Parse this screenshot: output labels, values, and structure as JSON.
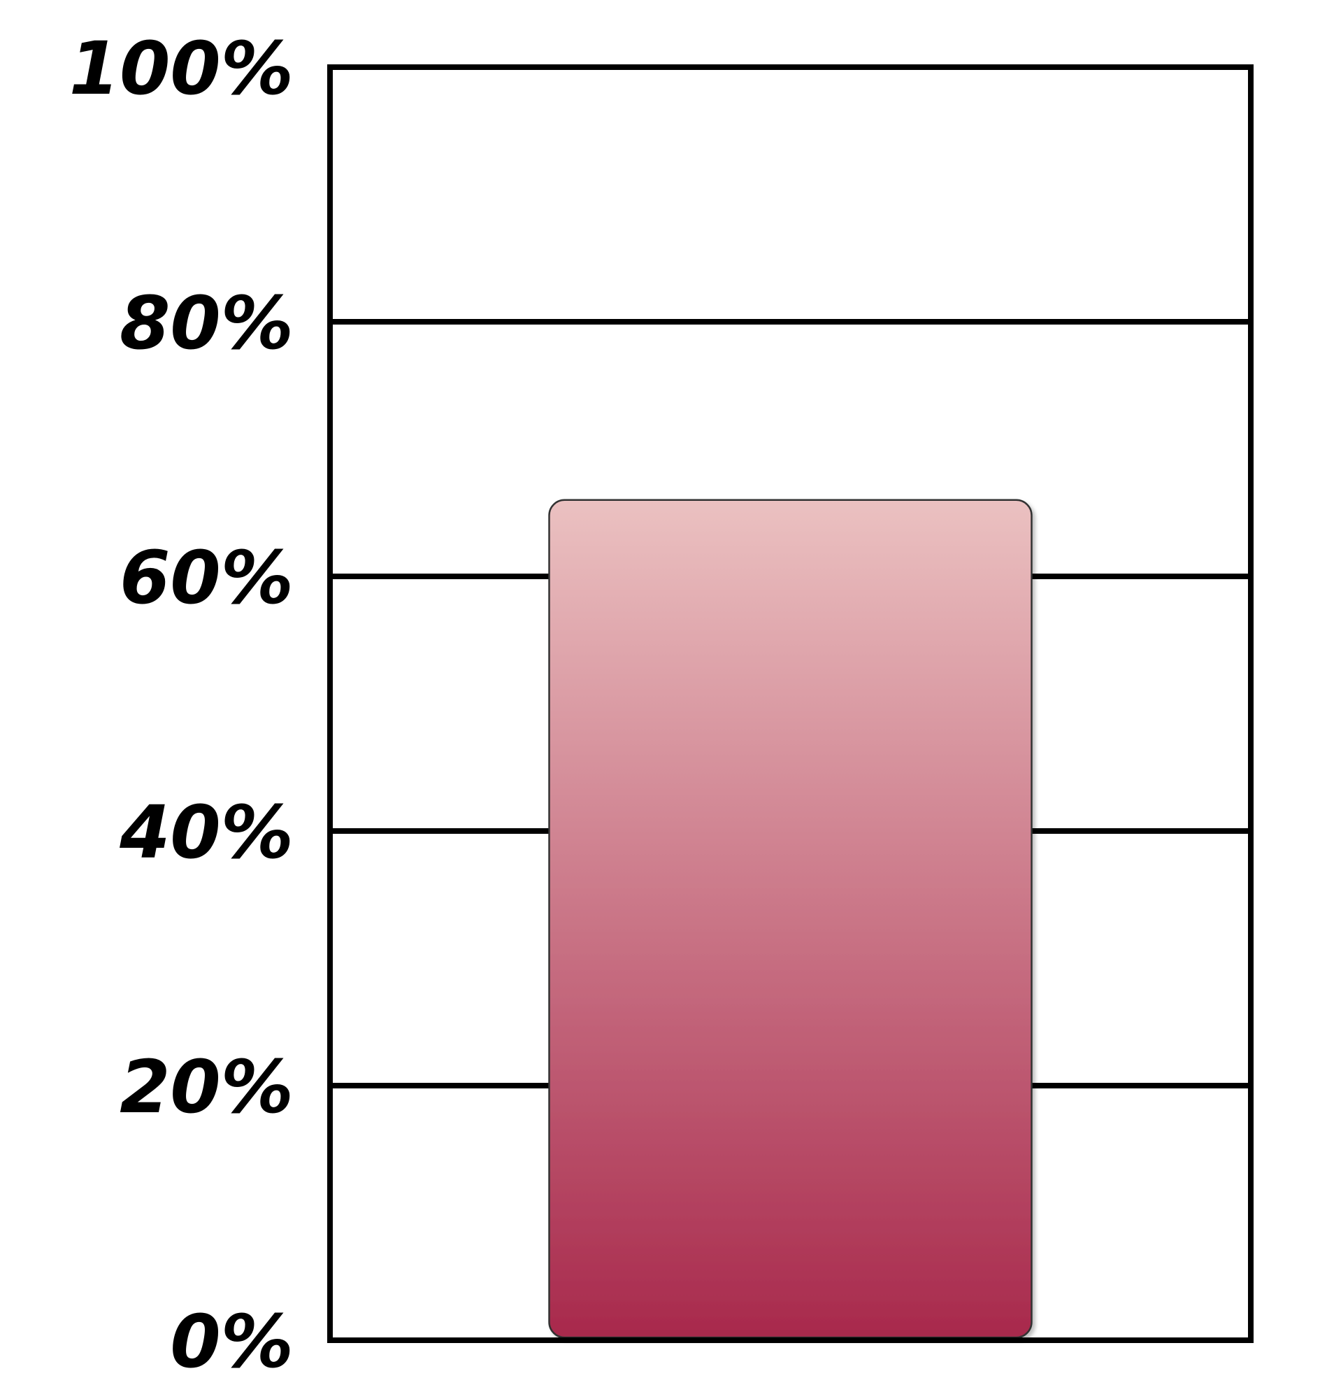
{
  "chart_data": {
    "type": "bar",
    "categories": [
      ""
    ],
    "values": [
      66
    ],
    "title": "",
    "xlabel": "",
    "ylabel": "",
    "ylim": [
      0,
      100
    ],
    "yticks": [
      0,
      20,
      40,
      60,
      80,
      100
    ],
    "ytick_labels": [
      "0%",
      "20%",
      "40%",
      "60%",
      "80%",
      "100%"
    ],
    "grid": true,
    "legend": "none",
    "colors": {
      "bar_top": "#ebc1c1",
      "bar_bottom": "#a8294c",
      "bar_outline": "#333333",
      "axis": "#000000"
    }
  }
}
